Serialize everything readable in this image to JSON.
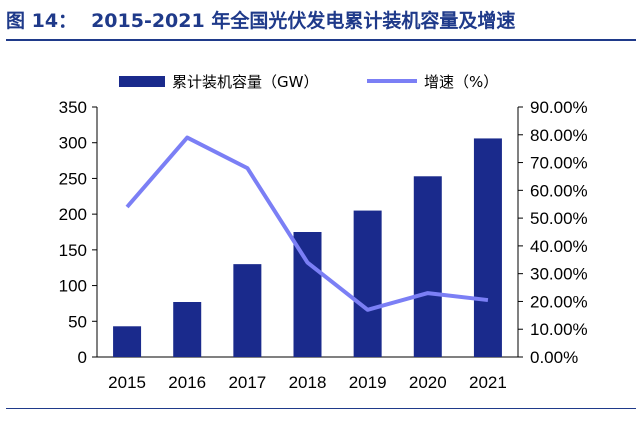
{
  "figure": {
    "label": "图 14：",
    "title": "2015-2021 年全国光伏发电累计装机容量及增速"
  },
  "chart_data": {
    "type": "bar",
    "categories": [
      "2015",
      "2016",
      "2017",
      "2018",
      "2019",
      "2020",
      "2021"
    ],
    "series": [
      {
        "name": "累计装机容量（GW）",
        "type": "bar",
        "axis": "left",
        "color": "#1a2a8c",
        "values": [
          43,
          77,
          130,
          175,
          205,
          253,
          306
        ]
      },
      {
        "name": "增速（%）",
        "type": "line",
        "axis": "right",
        "color": "#7b7ff5",
        "values": [
          54.0,
          79.0,
          68.0,
          34.0,
          17.0,
          23.0,
          20.5
        ]
      }
    ],
    "ylim_left": [
      0,
      350
    ],
    "ylim_right": [
      0,
      90
    ],
    "left_ticks": [
      "0",
      "50",
      "100",
      "150",
      "200",
      "250",
      "300",
      "350"
    ],
    "right_ticks": [
      "0.00%",
      "10.00%",
      "20.00%",
      "30.00%",
      "40.00%",
      "50.00%",
      "60.00%",
      "70.00%",
      "80.00%",
      "90.00%"
    ],
    "legend_position": "top",
    "grid": false
  }
}
